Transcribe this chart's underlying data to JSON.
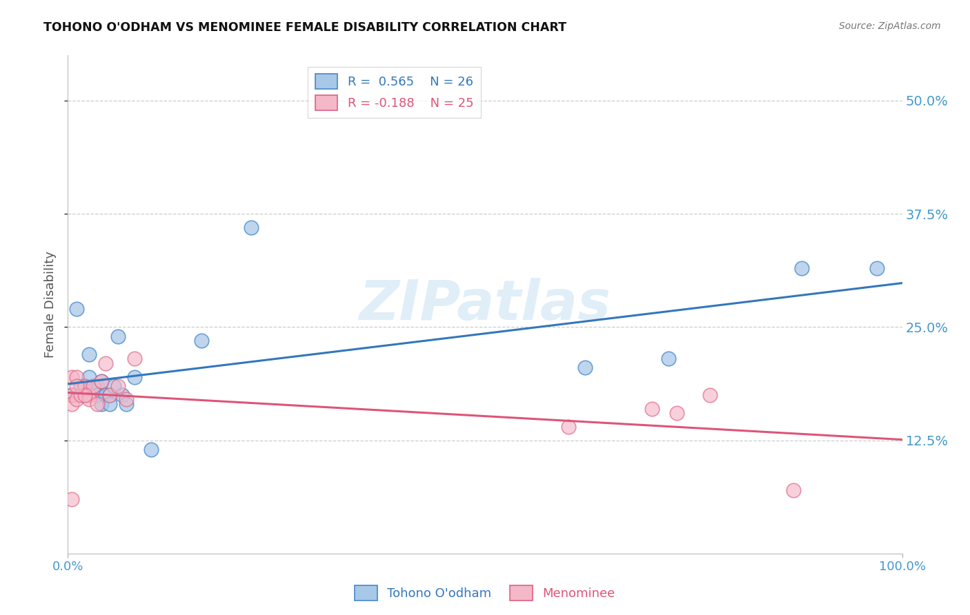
{
  "title": "TOHONO O'ODHAM VS MENOMINEE FEMALE DISABILITY CORRELATION CHART",
  "source": "Source: ZipAtlas.com",
  "ylabel": "Female Disability",
  "xlim": [
    0,
    1.0
  ],
  "ylim": [
    0.0,
    0.55
  ],
  "yticks": [
    0.125,
    0.25,
    0.375,
    0.5
  ],
  "ytick_labels": [
    "12.5%",
    "25.0%",
    "37.5%",
    "50.0%"
  ],
  "legend_R1": "R =  0.565",
  "legend_N1": "N = 26",
  "legend_R2": "R = -0.188",
  "legend_N2": "N = 25",
  "blue_color": "#a8c8e8",
  "pink_color": "#f4b8c8",
  "blue_edge_color": "#4488cc",
  "pink_edge_color": "#e06080",
  "blue_line_color": "#3377bb",
  "pink_line_color": "#dd5577",
  "blue_x": [
    0.005,
    0.01,
    0.015,
    0.02,
    0.025,
    0.025,
    0.03,
    0.035,
    0.035,
    0.04,
    0.04,
    0.045,
    0.05,
    0.05,
    0.055,
    0.06,
    0.065,
    0.07,
    0.08,
    0.1,
    0.16,
    0.22,
    0.62,
    0.72,
    0.88,
    0.97
  ],
  "blue_y": [
    0.175,
    0.27,
    0.185,
    0.185,
    0.195,
    0.22,
    0.18,
    0.185,
    0.175,
    0.19,
    0.165,
    0.175,
    0.175,
    0.165,
    0.185,
    0.24,
    0.175,
    0.165,
    0.195,
    0.115,
    0.235,
    0.36,
    0.205,
    0.215,
    0.315,
    0.315
  ],
  "pink_x": [
    0.005,
    0.005,
    0.005,
    0.005,
    0.01,
    0.01,
    0.015,
    0.02,
    0.025,
    0.025,
    0.03,
    0.035,
    0.04,
    0.045,
    0.05,
    0.06,
    0.07,
    0.08,
    0.6,
    0.7,
    0.73,
    0.77,
    0.87,
    0.02,
    0.01
  ],
  "pink_y": [
    0.195,
    0.175,
    0.165,
    0.06,
    0.195,
    0.17,
    0.175,
    0.185,
    0.175,
    0.17,
    0.185,
    0.165,
    0.19,
    0.21,
    0.175,
    0.185,
    0.17,
    0.215,
    0.14,
    0.16,
    0.155,
    0.175,
    0.07,
    0.175,
    0.185
  ],
  "watermark": "ZIPatlas",
  "background_color": "#ffffff",
  "grid_color": "#cccccc",
  "title_color": "#111111",
  "source_color": "#777777",
  "ylabel_color": "#555555",
  "yaxis_label_color": "#4499cc",
  "xaxis_label_color": "#4499cc"
}
